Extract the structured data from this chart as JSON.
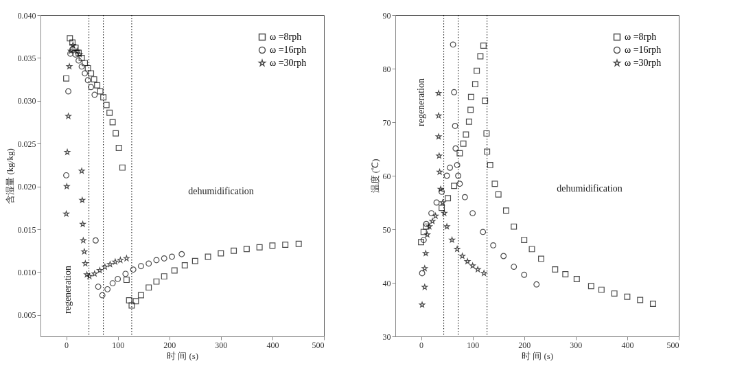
{
  "chart_data": [
    {
      "type": "scatter",
      "xlabel": "时 间 (s)",
      "ylabel": "含湿量 (kg/kg)",
      "xlim": [
        -50,
        500
      ],
      "xticks": [
        0,
        100,
        200,
        300,
        400,
        500
      ],
      "ylim": [
        0.0025,
        0.04
      ],
      "yticks": [
        0.005,
        {
          "value": 0.01,
          "label": "0.010"
        },
        0.015,
        {
          "value": 0.02,
          "label": "0.020"
        },
        0.025,
        {
          "value": 0.03,
          "label": "0.030"
        },
        0.035,
        {
          "value": 0.04,
          "label": "0.040"
        }
      ],
      "grid": false,
      "legend": "top right",
      "series": [
        {
          "name": "ω =8rph",
          "color": "#000000",
          "marker": "square",
          "x": [
            0,
            7,
            12,
            18,
            24,
            30,
            36,
            42,
            48,
            54,
            60,
            66,
            72,
            78,
            84,
            90,
            96,
            102,
            109,
            117,
            122,
            127,
            135,
            145,
            160,
            175,
            190,
            210,
            230,
            250,
            275,
            300,
            325,
            350,
            375,
            400,
            425,
            451
          ],
          "values": [
            0.0326,
            0.0373,
            0.0368,
            0.0362,
            0.0356,
            0.035,
            0.0344,
            0.0338,
            0.0332,
            0.0325,
            0.0318,
            0.0311,
            0.0304,
            0.0295,
            0.0286,
            0.0275,
            0.0262,
            0.0245,
            0.0222,
            0.0091,
            0.0067,
            0.0061,
            0.0066,
            0.0073,
            0.0082,
            0.0089,
            0.0095,
            0.0102,
            0.0108,
            0.0113,
            0.0118,
            0.0122,
            0.0125,
            0.0127,
            0.0129,
            0.0131,
            0.0132,
            0.0133
          ]
        },
        {
          "name": "ω =16rph",
          "color": "#000000",
          "marker": "circle",
          "x": [
            0,
            4,
            8,
            12,
            18,
            24,
            30,
            36,
            42,
            48,
            55,
            57,
            62,
            70,
            80,
            90,
            100,
            115,
            130,
            145,
            160,
            175,
            190,
            205,
            224
          ],
          "values": [
            0.0213,
            0.0311,
            0.0355,
            0.036,
            0.0354,
            0.0347,
            0.034,
            0.0332,
            0.0324,
            0.0316,
            0.0307,
            0.0137,
            0.0083,
            0.0073,
            0.008,
            0.0087,
            0.0092,
            0.0098,
            0.0103,
            0.0107,
            0.011,
            0.0114,
            0.0116,
            0.0118,
            0.0121
          ]
        },
        {
          "name": "ω =30rph",
          "color": "#000000",
          "marker": "star",
          "x": [
            0,
            1,
            2,
            4,
            6,
            9,
            13,
            21,
            26,
            30,
            31,
            32,
            33,
            35,
            37,
            40,
            45,
            55,
            65,
            75,
            85,
            95,
            105,
            117
          ],
          "values": [
            0.0168,
            0.02,
            0.024,
            0.0282,
            0.034,
            0.0358,
            0.0365,
            0.0358,
            0.0354,
            0.0218,
            0.0184,
            0.0156,
            0.0137,
            0.0124,
            0.011,
            0.0097,
            0.0095,
            0.0098,
            0.0102,
            0.0106,
            0.0109,
            0.0112,
            0.0114,
            0.0116
          ]
        }
      ],
      "ref_lines": [
        {
          "axis": "x",
          "value": 44,
          "line_style": "dotted",
          "color": "#000000"
        },
        {
          "axis": "x",
          "value": 72,
          "line_style": "dotted",
          "color": "#000000"
        },
        {
          "axis": "x",
          "value": 127,
          "line_style": "dotted",
          "color": "#000000"
        }
      ],
      "annotations": [
        "regeneration",
        "dehumidification"
      ]
    },
    {
      "type": "scatter",
      "xlabel": "时 间 (s)",
      "ylabel": "温度 (℃)",
      "xlim": [
        -50,
        500
      ],
      "xticks": [
        0,
        100,
        200,
        300,
        400,
        500
      ],
      "ylim": [
        30,
        90
      ],
      "yticks": [
        30,
        40,
        50,
        60,
        70,
        80,
        90
      ],
      "grid": false,
      "legend": "top right",
      "series": [
        {
          "name": "ω =8rph",
          "color": "#000000",
          "marker": "square",
          "x": [
            0,
            5,
            10,
            40,
            52,
            64,
            75,
            82,
            87,
            93,
            96,
            97,
            105,
            108,
            115,
            121,
            124,
            127,
            128,
            134,
            143,
            150,
            165,
            180,
            200,
            215,
            233,
            260,
            280,
            302,
            330,
            350,
            375,
            400,
            425,
            450
          ],
          "values": [
            47.6,
            49.5,
            50.5,
            54,
            55.8,
            58.1,
            64.2,
            66,
            67.7,
            70.1,
            72.3,
            74.7,
            77.1,
            79.6,
            82.3,
            84.3,
            74,
            67.9,
            64.5,
            62,
            58.5,
            56.5,
            53.5,
            50.5,
            48,
            46.3,
            44.5,
            42.5,
            41.6,
            40.7,
            39.4,
            38.7,
            38,
            37.4,
            36.8,
            36.1
          ]
        },
        {
          "name": "ω =16rph",
          "color": "#000000",
          "marker": "circle",
          "x": [
            2,
            5,
            10,
            20,
            30,
            40,
            50,
            56,
            62,
            64,
            66,
            67,
            70,
            72,
            75,
            85,
            100,
            120,
            140,
            160,
            180,
            200,
            224
          ],
          "values": [
            41.8,
            48,
            51,
            53,
            55,
            57,
            60,
            61.5,
            84.5,
            75.6,
            69.3,
            65.1,
            62,
            60,
            58.5,
            56,
            53,
            49.5,
            47,
            45,
            43,
            41.5,
            39.7
          ]
        },
        {
          "name": "ω =30rph",
          "color": "#000000",
          "marker": "star",
          "x": [
            2,
            7,
            7,
            9,
            12,
            16,
            22,
            28,
            34,
            34,
            34,
            35,
            36,
            38,
            42,
            45,
            50,
            60,
            70,
            80,
            90,
            100,
            110,
            122
          ],
          "values": [
            35.9,
            39.2,
            42.7,
            45.5,
            49,
            50.5,
            51.5,
            52.5,
            75.4,
            71.2,
            67.3,
            63.7,
            60.7,
            57.5,
            55,
            53,
            50.5,
            48,
            46.3,
            45,
            44,
            43.2,
            42.5,
            41.8
          ]
        }
      ],
      "ref_lines": [
        {
          "axis": "x",
          "value": 44,
          "line_style": "dotted",
          "color": "#000000"
        },
        {
          "axis": "x",
          "value": 72,
          "line_style": "dotted",
          "color": "#000000"
        },
        {
          "axis": "x",
          "value": 128,
          "line_style": "dotted",
          "color": "#000000"
        }
      ],
      "annotations": [
        "regeneration",
        "dehumidification"
      ]
    }
  ]
}
